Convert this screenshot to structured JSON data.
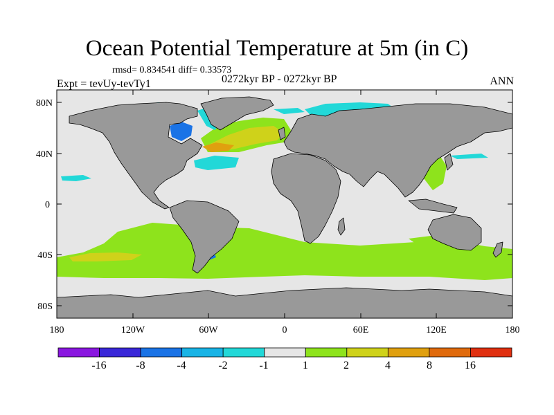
{
  "title": "Ocean Potential Temperature at 5m (in C)",
  "stats_line": "rmsd= 0.834541  diff= 0.33573",
  "experiment": "Expt = tevUy-tevTy1",
  "period": "0272kyr BP - 0272kyr BP",
  "season": "ANN",
  "map": {
    "lon_range": [
      -180,
      180
    ],
    "lat_range": [
      -90,
      90
    ],
    "x_ticks": [
      "180",
      "120W",
      "60W",
      "0",
      "60E",
      "120E",
      "180"
    ],
    "y_ticks": [
      "80N",
      "40N",
      "0",
      "40S",
      "80S"
    ],
    "land_color": "#999999",
    "ocean_background_color": "#e6e6e6"
  },
  "colorbar": {
    "labels": [
      "-16",
      "-8",
      "-4",
      "-2",
      "-1",
      "1",
      "2",
      "4",
      "8",
      "16"
    ],
    "colors": [
      "#8a17e0",
      "#3a27d8",
      "#1a73e6",
      "#19b4e6",
      "#22d8d8",
      "#e6e6e6",
      "#8ee31c",
      "#cfd21a",
      "#e0a00f",
      "#e06a0c",
      "#e03010"
    ]
  }
}
